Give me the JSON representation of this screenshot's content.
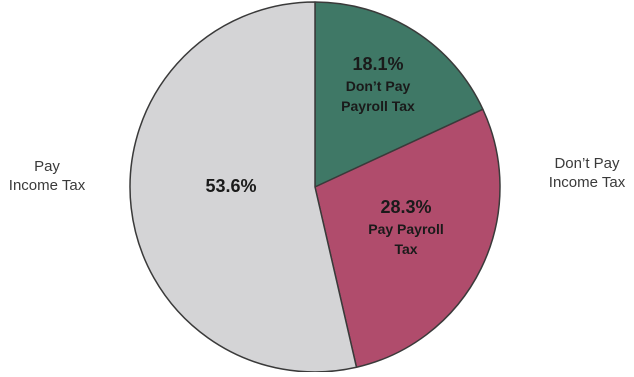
{
  "chart_data": {
    "type": "pie",
    "slices": [
      {
        "value": 18.1,
        "value_label": "18.1%",
        "label_lines": [
          "Don’t Pay",
          "Payroll Tax"
        ],
        "color": "#3f7866"
      },
      {
        "value": 28.3,
        "value_label": "28.3%",
        "label_lines": [
          "Pay Payroll",
          "Tax"
        ],
        "color": "#b04c6c"
      },
      {
        "value": 53.6,
        "value_label": "53.6%",
        "label_lines": [],
        "color": "#d4d4d6"
      }
    ],
    "group_labels": {
      "left": "Pay\nIncome Tax",
      "right": "Don’t Pay\nIncome Tax"
    },
    "border_color": "#3a3a3a"
  }
}
